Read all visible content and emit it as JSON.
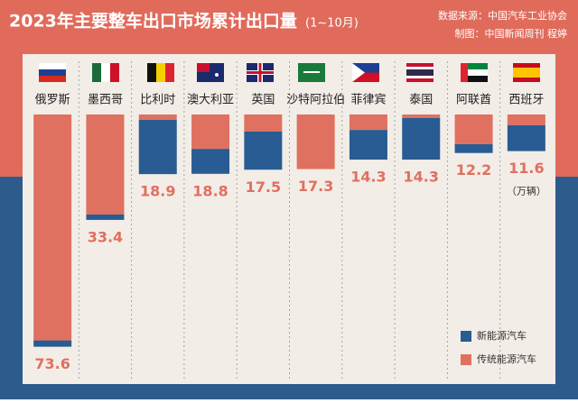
{
  "chart_data": {
    "type": "bar",
    "stacked": true,
    "title": "2023年主要整车出口市场累计出口量",
    "title_note": "(1~10月)",
    "source": "数据来源：中国汽车工业协会",
    "credit": "制图：中国新闻周刊 程婷",
    "unit_note": "（万辆）",
    "categories": [
      "俄罗斯",
      "墨西哥",
      "比利时",
      "澳大利亚",
      "英国",
      "沙特阿拉伯",
      "菲律宾",
      "泰国",
      "阿联酋",
      "西班牙"
    ],
    "totals": [
      73.6,
      33.4,
      18.9,
      18.8,
      17.5,
      17.3,
      14.3,
      14.3,
      12.2,
      11.6
    ],
    "series": [
      {
        "name": "新能源汽车",
        "color": "#285c92",
        "values": [
          2.0,
          1.7,
          17.2,
          7.9,
          12.1,
          0,
          9.4,
          13.2,
          2.8,
          8.2
        ]
      },
      {
        "name": "传统能源汽车",
        "color": "#e0705f",
        "values": [
          71.6,
          31.7,
          1.7,
          10.9,
          5.4,
          17.3,
          4.9,
          1.1,
          9.4,
          3.4
        ]
      }
    ]
  }
}
